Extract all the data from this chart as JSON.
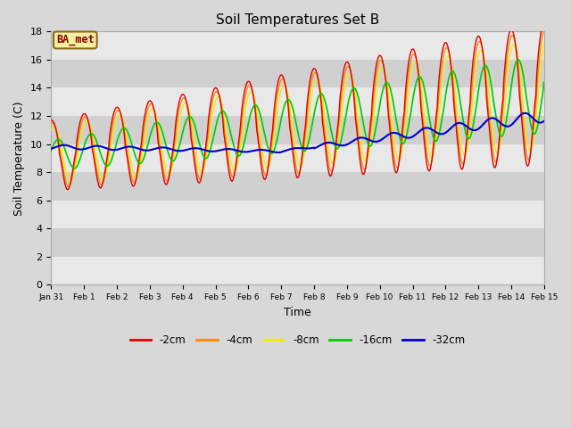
{
  "title": "Soil Temperatures Set B",
  "xlabel": "Time",
  "ylabel": "Soil Temperature (C)",
  "ylim": [
    0,
    18
  ],
  "annotation": "BA_met",
  "colors": {
    "neg2cm": "#dd0000",
    "neg4cm": "#ff8800",
    "neg8cm": "#eeee00",
    "neg16cm": "#00cc00",
    "neg32cm": "#0000cc"
  },
  "legend_labels": [
    "-2cm",
    "-4cm",
    "-8cm",
    "-16cm",
    "-32cm"
  ],
  "bg_color": "#d8d8d8",
  "band_colors": [
    "#e8e8e8",
    "#d0d0d0"
  ],
  "tick_labels": [
    "Jan 31",
    "Feb 1",
    "Feb 2",
    "Feb 3",
    "Feb 4",
    "Feb 5",
    "Feb 6",
    "Feb 7",
    "Feb 8",
    "Feb 9",
    "Feb 10",
    "Feb 11",
    "Feb 12",
    "Feb 13",
    "Feb 14",
    "Feb 15"
  ],
  "yticks": [
    0,
    2,
    4,
    6,
    8,
    10,
    12,
    14,
    16,
    18
  ],
  "samples_per_day": 48
}
